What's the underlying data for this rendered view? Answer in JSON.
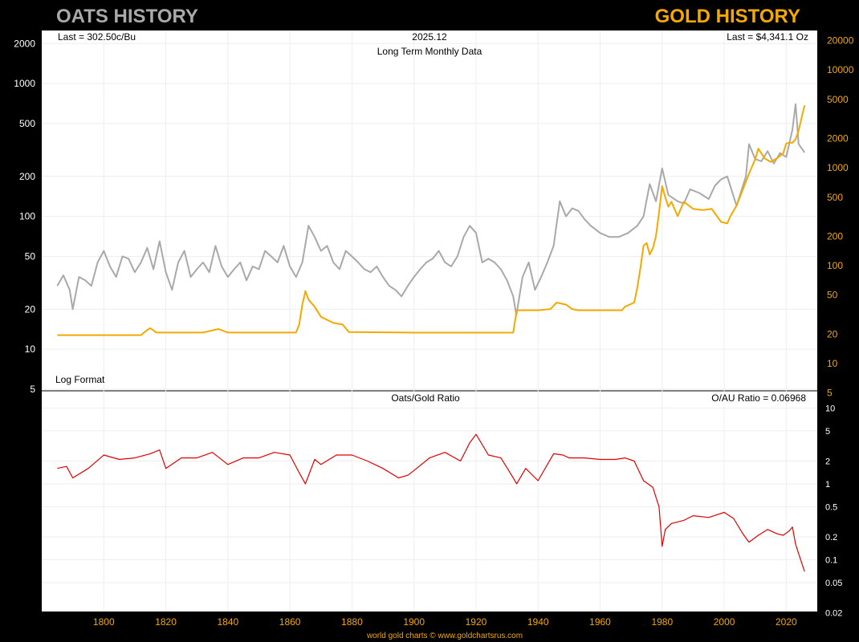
{
  "colors": {
    "background": "#000000",
    "panel": "#ffffff",
    "oats": "#a9a9a9",
    "gold": "#f5a800",
    "ratio": "#e00000",
    "grid": "#eeeeee",
    "title_oats": "#a9a9a9",
    "title_gold": "#f5a800",
    "left_ticks": "#ffffff",
    "right_ticks": "#f5a800",
    "x_ticks": "#f5a800",
    "footer": "#f5a800"
  },
  "chart_data": [
    {
      "type": "line",
      "title_left": "OATS HISTORY",
      "title_right": "GOLD HISTORY",
      "last_left": "Last = 302.50c/Bu",
      "date_label": "2025.12",
      "subtitle": "Long Term Monthly Data",
      "last_right": "Last = $4,341.1 Oz",
      "format_label": "Log Format",
      "scale": "log",
      "x_range": [
        1780,
        2030
      ],
      "y_left_range": [
        5,
        2500
      ],
      "y_left_ticks": [
        5,
        10,
        20,
        50,
        100,
        200,
        500,
        1000,
        2000
      ],
      "y_right_range": [
        5,
        30000
      ],
      "y_right_ticks": [
        5,
        10,
        20,
        50,
        100,
        200,
        500,
        1000,
        2000,
        5000,
        10000,
        20000
      ],
      "series": [
        {
          "name": "Oats (c/Bu)",
          "axis": "left",
          "x": [
            1785,
            1787,
            1789,
            1790,
            1792,
            1794,
            1796,
            1798,
            1800,
            1802,
            1804,
            1806,
            1808,
            1810,
            1812,
            1814,
            1816,
            1818,
            1820,
            1822,
            1824,
            1826,
            1828,
            1830,
            1832,
            1834,
            1836,
            1838,
            1840,
            1842,
            1844,
            1846,
            1848,
            1850,
            1852,
            1854,
            1856,
            1858,
            1860,
            1862,
            1864,
            1866,
            1868,
            1870,
            1872,
            1874,
            1876,
            1878,
            1880,
            1882,
            1884,
            1886,
            1888,
            1890,
            1892,
            1894,
            1896,
            1898,
            1900,
            1902,
            1904,
            1906,
            1908,
            1910,
            1912,
            1914,
            1916,
            1918,
            1920,
            1922,
            1924,
            1926,
            1928,
            1930,
            1932,
            1933,
            1935,
            1937,
            1939,
            1941,
            1943,
            1945,
            1947,
            1949,
            1951,
            1953,
            1955,
            1957,
            1960,
            1963,
            1966,
            1969,
            1972,
            1974,
            1976,
            1978,
            1980,
            1982,
            1985,
            1987,
            1989,
            1992,
            1995,
            1997,
            1999,
            2001,
            2004,
            2007,
            2008,
            2010,
            2012,
            2014,
            2016,
            2018,
            2020,
            2022,
            2023,
            2024,
            2025.9
          ],
          "values": [
            30,
            36,
            28,
            20,
            35,
            33,
            30,
            45,
            55,
            42,
            35,
            50,
            48,
            38,
            45,
            58,
            40,
            65,
            38,
            28,
            45,
            55,
            35,
            40,
            45,
            38,
            60,
            42,
            35,
            40,
            45,
            33,
            42,
            40,
            55,
            50,
            45,
            60,
            42,
            35,
            45,
            85,
            70,
            55,
            60,
            45,
            40,
            55,
            50,
            45,
            40,
            38,
            42,
            35,
            30,
            28,
            25,
            30,
            35,
            40,
            45,
            48,
            55,
            45,
            42,
            50,
            70,
            85,
            75,
            45,
            48,
            45,
            40,
            33,
            25,
            18,
            35,
            45,
            28,
            35,
            45,
            60,
            130,
            100,
            115,
            110,
            95,
            85,
            75,
            70,
            70,
            75,
            85,
            100,
            175,
            130,
            230,
            145,
            130,
            125,
            160,
            150,
            135,
            170,
            190,
            200,
            120,
            200,
            350,
            270,
            260,
            310,
            250,
            300,
            280,
            450,
            700,
            350,
            302.5
          ]
        },
        {
          "name": "Gold ($/Oz)",
          "axis": "right",
          "x": [
            1785,
            1812,
            1814,
            1815,
            1817,
            1819,
            1832,
            1837,
            1840,
            1842,
            1862,
            1863,
            1864,
            1865,
            1866,
            1868,
            1870,
            1874,
            1877,
            1879,
            1900,
            1932,
            1933.1,
            1934,
            1940,
            1944,
            1946,
            1949,
            1951,
            1953,
            1960,
            1967,
            1968,
            1971,
            1972,
            1973,
            1974,
            1975,
            1976,
            1977,
            1978,
            1979,
            1980,
            1981,
            1982,
            1983,
            1985,
            1987,
            1990,
            1993,
            1996,
            1999,
            2001,
            2002,
            2004,
            2006,
            2008,
            2010,
            2011,
            2013,
            2015,
            2017,
            2019,
            2020,
            2021,
            2022,
            2023,
            2024,
            2025,
            2025.9
          ],
          "values": [
            19.5,
            19.5,
            22,
            23,
            20.7,
            20.7,
            20.7,
            22.5,
            20.7,
            20.7,
            20.7,
            25,
            40,
            55,
            45,
            38,
            30,
            26,
            25,
            21,
            20.67,
            20.67,
            35,
            35,
            35,
            36,
            42,
            40,
            36,
            35,
            35,
            35,
            38,
            42,
            60,
            95,
            160,
            170,
            130,
            150,
            200,
            350,
            650,
            500,
            400,
            450,
            320,
            450,
            380,
            370,
            380,
            280,
            270,
            320,
            410,
            600,
            870,
            1220,
            1570,
            1250,
            1150,
            1250,
            1400,
            1770,
            1800,
            1800,
            1950,
            2400,
            3300,
            4341.1
          ]
        }
      ]
    },
    {
      "type": "line",
      "title": "Oats/Gold Ratio",
      "last_label": "O/AU Ratio = 0.06968",
      "scale": "log",
      "y_range": [
        0.02,
        12
      ],
      "y_ticks": [
        0.02,
        0.05,
        0.1,
        0.2,
        0.5,
        1,
        2,
        5,
        10
      ],
      "x_range": [
        1780,
        2030
      ],
      "x_ticks": [
        1800,
        1820,
        1840,
        1860,
        1880,
        1900,
        1920,
        1940,
        1960,
        1980,
        2000,
        2020
      ],
      "series": [
        {
          "name": "O/AU Ratio",
          "x": [
            1785,
            1788,
            1790,
            1795,
            1800,
            1805,
            1810,
            1815,
            1818,
            1820,
            1825,
            1830,
            1835,
            1840,
            1845,
            1850,
            1855,
            1860,
            1863,
            1865,
            1868,
            1870,
            1875,
            1880,
            1885,
            1890,
            1895,
            1898,
            1900,
            1905,
            1910,
            1915,
            1918,
            1920,
            1924,
            1928,
            1932,
            1933.1,
            1936,
            1940,
            1945,
            1948,
            1950,
            1955,
            1960,
            1965,
            1968,
            1971,
            1974,
            1977,
            1979,
            1980,
            1981,
            1983,
            1987,
            1990,
            1995,
            2000,
            2003,
            2006,
            2008,
            2011,
            2014,
            2017,
            2019,
            2021,
            2022,
            2023,
            2024,
            2025.9
          ],
          "values": [
            1.6,
            1.7,
            1.2,
            1.6,
            2.4,
            2.1,
            2.2,
            2.5,
            2.8,
            1.6,
            2.2,
            2.2,
            2.6,
            1.8,
            2.2,
            2.2,
            2.6,
            2.4,
            1.4,
            1.0,
            2.1,
            1.8,
            2.4,
            2.4,
            2.0,
            1.6,
            1.2,
            1.3,
            1.5,
            2.2,
            2.6,
            2.0,
            3.5,
            4.5,
            2.4,
            2.2,
            1.2,
            1.0,
            1.6,
            1.1,
            2.5,
            2.4,
            2.2,
            2.2,
            2.1,
            2.1,
            2.2,
            2.0,
            1.1,
            0.9,
            0.5,
            0.15,
            0.25,
            0.3,
            0.33,
            0.38,
            0.36,
            0.42,
            0.35,
            0.22,
            0.17,
            0.21,
            0.25,
            0.22,
            0.21,
            0.24,
            0.27,
            0.16,
            0.12,
            0.06968
          ]
        }
      ]
    }
  ],
  "footer": "world gold charts © www.goldchartsrus.com"
}
